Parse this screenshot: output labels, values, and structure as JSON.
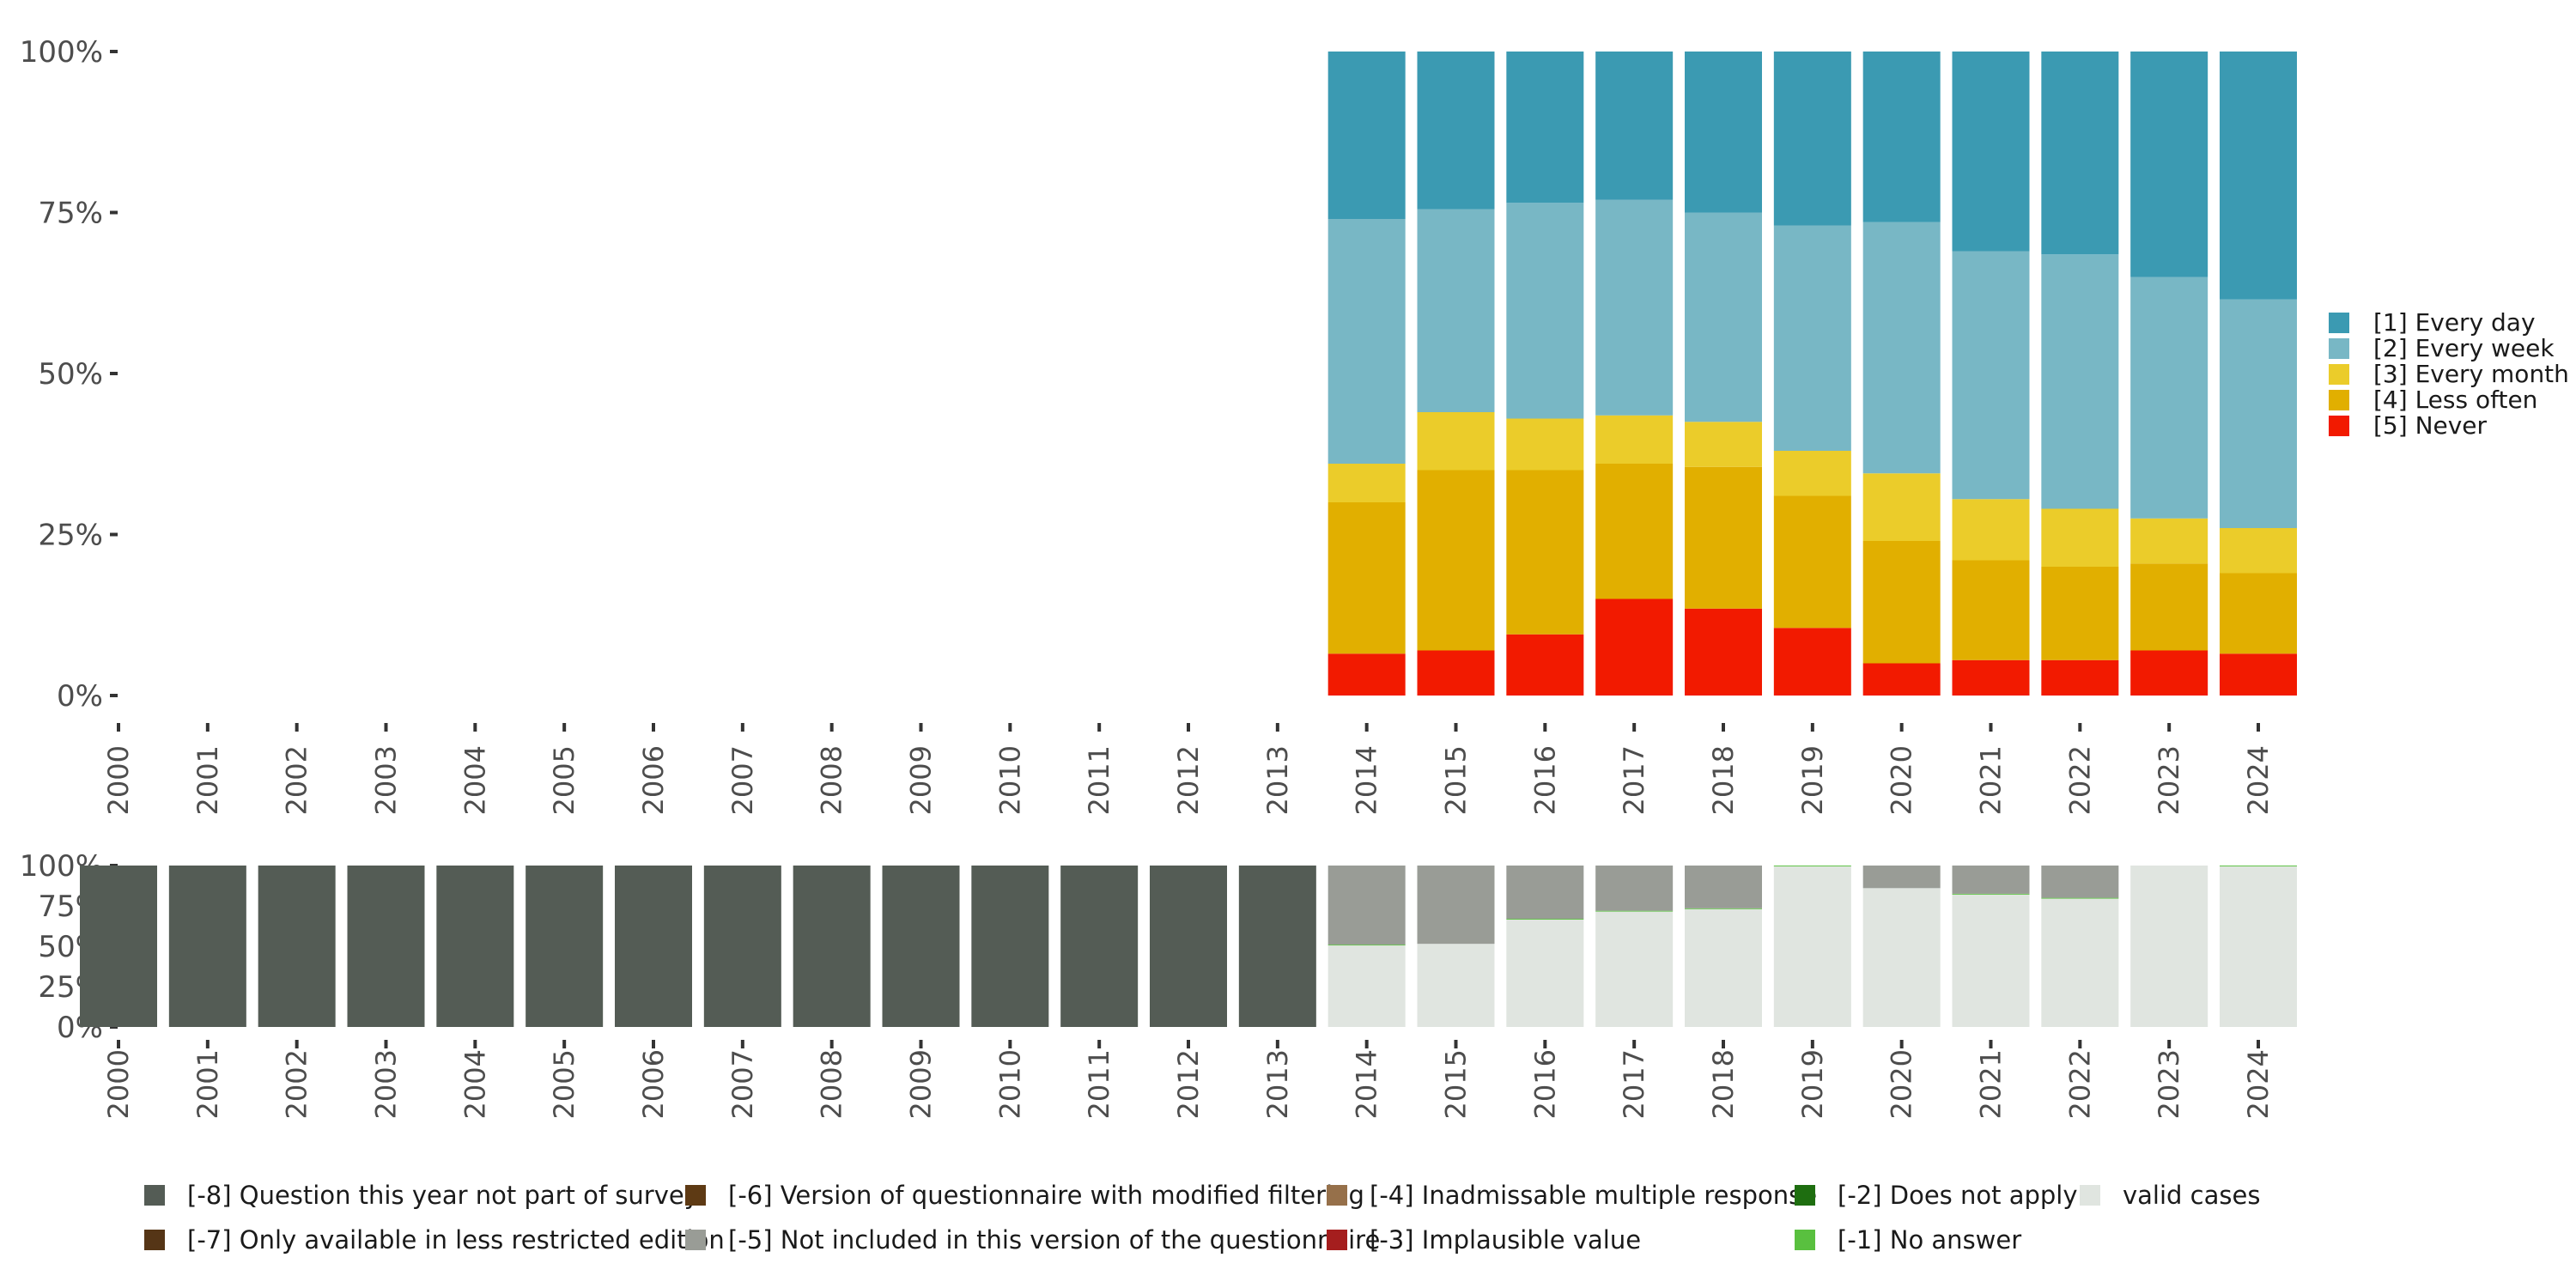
{
  "chart_data": [
    {
      "type": "bar",
      "stacked": true,
      "name": "response distribution",
      "categories": [
        "2000",
        "2001",
        "2002",
        "2003",
        "2004",
        "2005",
        "2006",
        "2007",
        "2008",
        "2009",
        "2010",
        "2011",
        "2012",
        "2013",
        "2014",
        "2015",
        "2016",
        "2017",
        "2018",
        "2019",
        "2020",
        "2021",
        "2022",
        "2023",
        "2024"
      ],
      "y_ticks": [
        "0%",
        "25%",
        "50%",
        "75%",
        "100%"
      ],
      "ylim": [
        0,
        100
      ],
      "legend_position": "right",
      "series": [
        {
          "name": "[5] Never",
          "color": "#F21A00",
          "values": [
            null,
            null,
            null,
            null,
            null,
            null,
            null,
            null,
            null,
            null,
            null,
            null,
            null,
            null,
            6.5,
            7,
            9.5,
            15,
            13.5,
            10.5,
            5,
            5.5,
            5.5,
            7,
            6.5
          ]
        },
        {
          "name": "[4] Less often",
          "color": "#E1AF00",
          "values": [
            null,
            null,
            null,
            null,
            null,
            null,
            null,
            null,
            null,
            null,
            null,
            null,
            null,
            null,
            23.5,
            28,
            25.5,
            21,
            22,
            20.5,
            19,
            15.5,
            14.5,
            13.5,
            12.5
          ]
        },
        {
          "name": "[3] Every month",
          "color": "#EBCC2A",
          "values": [
            null,
            null,
            null,
            null,
            null,
            null,
            null,
            null,
            null,
            null,
            null,
            null,
            null,
            null,
            6,
            9,
            8,
            7.5,
            7,
            7,
            10.5,
            9.5,
            9,
            7,
            7
          ]
        },
        {
          "name": "[2] Every week",
          "color": "#78B7C5",
          "values": [
            null,
            null,
            null,
            null,
            null,
            null,
            null,
            null,
            null,
            null,
            null,
            null,
            null,
            null,
            38,
            31.5,
            33.5,
            33.5,
            32.5,
            35,
            39,
            38.5,
            39.5,
            37.5,
            35.5
          ]
        },
        {
          "name": "[1] Every day",
          "color": "#3B9AB2",
          "values": [
            null,
            null,
            null,
            null,
            null,
            null,
            null,
            null,
            null,
            null,
            null,
            null,
            null,
            null,
            26,
            24.5,
            23.5,
            23,
            25,
            27,
            26.5,
            31,
            31.5,
            35,
            38.5
          ]
        }
      ],
      "legend": [
        "[1] Every day",
        "[2] Every week",
        "[3] Every month",
        "[4] Less often",
        "[5] Never"
      ]
    },
    {
      "type": "bar",
      "stacked": true,
      "name": "missing value distribution",
      "categories": [
        "2000",
        "2001",
        "2002",
        "2003",
        "2004",
        "2005",
        "2006",
        "2007",
        "2008",
        "2009",
        "2010",
        "2011",
        "2012",
        "2013",
        "2014",
        "2015",
        "2016",
        "2017",
        "2018",
        "2019",
        "2020",
        "2021",
        "2022",
        "2023",
        "2024"
      ],
      "y_ticks": [
        "0%",
        "25%",
        "50%",
        "75%",
        "100%"
      ],
      "ylim": [
        0,
        100
      ],
      "legend_position": "bottom",
      "series": [
        {
          "name": "valid cases",
          "color": "#E0E5E0",
          "values": [
            0,
            0,
            0,
            0,
            0,
            0,
            0,
            0,
            0,
            0,
            0,
            0,
            0,
            0,
            50.5,
            51.5,
            66.5,
            71.5,
            73,
            99.5,
            86,
            82,
            79.5,
            100,
            99.5
          ]
        },
        {
          "name": "[-1] No answer",
          "color": "#59C03F",
          "values": [
            0,
            0,
            0,
            0,
            0,
            0,
            0,
            0,
            0,
            0,
            0,
            0,
            0,
            0,
            0.5,
            0,
            0.5,
            0.5,
            0.5,
            0.5,
            0,
            0.5,
            0.5,
            0,
            0.5
          ]
        },
        {
          "name": "[-5] Not included in this version of the questionnaire",
          "color": "#999C96",
          "values": [
            0,
            0,
            0,
            0,
            0,
            0,
            0,
            0,
            0,
            0,
            0,
            0,
            0,
            0,
            49,
            48.5,
            33,
            28,
            26.5,
            0,
            14,
            17.5,
            20,
            0,
            0
          ]
        },
        {
          "name": "[-8] Question this year not part of survey",
          "color": "#545C55",
          "values": [
            100,
            100,
            100,
            100,
            100,
            100,
            100,
            100,
            100,
            100,
            100,
            100,
            100,
            100,
            0,
            0,
            0,
            0,
            0,
            0,
            0,
            0,
            0,
            0,
            0
          ]
        }
      ],
      "legend": [
        {
          "label": "[-8] Question this year not part of survey",
          "color": "#545C55"
        },
        {
          "label": "[-7] Only available in less restricted edition",
          "color": "#553516"
        },
        {
          "label": "[-6] Version of questionnaire with modified filtering",
          "color": "#5E3A14"
        },
        {
          "label": "[-5] Not included in this version of the questionnaire",
          "color": "#999C96"
        },
        {
          "label": "[-4] Inadmissable multiple response",
          "color": "#96704A"
        },
        {
          "label": "[-3] Implausible value",
          "color": "#A51E1E"
        },
        {
          "label": "[-2] Does not apply",
          "color": "#1E6E10"
        },
        {
          "label": "[-1] No answer",
          "color": "#59C03F"
        },
        {
          "label": "valid cases",
          "color": "#E0E5E0"
        }
      ]
    }
  ]
}
